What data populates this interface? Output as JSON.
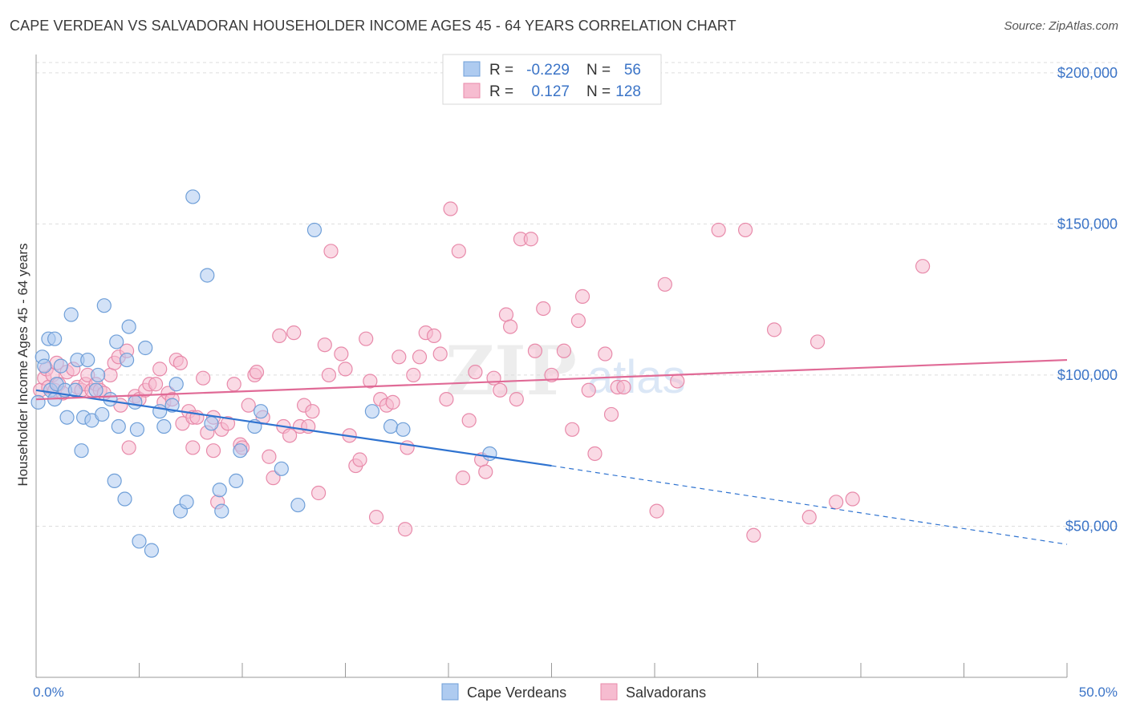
{
  "title": "CAPE VERDEAN VS SALVADORAN HOUSEHOLDER INCOME AGES 45 - 64 YEARS CORRELATION CHART",
  "source": "Source: ZipAtlas.com",
  "watermark": {
    "zip": "ZIP",
    "atlas": "atlas"
  },
  "legend": {
    "r_label": "R =",
    "n_label": "N =",
    "rows": [
      {
        "r": "-0.229",
        "n": "56"
      },
      {
        "r": "0.127",
        "n": "128"
      }
    ]
  },
  "bottom_legend": [
    "Cape Verdeans",
    "Salvadorans"
  ],
  "colors": {
    "blue_fill": "#aecbf0",
    "blue_stroke": "#6f9fd8",
    "blue_line": "#2f73d0",
    "pink_fill": "#f6bcd0",
    "pink_stroke": "#e88aaa",
    "pink_line": "#e06a96",
    "tick_text": "#3b74c7",
    "grid": "#dddddd"
  },
  "chart_data": {
    "type": "scatter",
    "title": "CAPE VERDEAN VS SALVADORAN HOUSEHOLDER INCOME AGES 45 - 64 YEARS CORRELATION CHART",
    "xlabel": "",
    "ylabel": "Householder Income Ages 45 - 64 years",
    "xlim": [
      0,
      50
    ],
    "ylim": [
      0,
      205000
    ],
    "x_tick_labels": [
      "0.0%",
      "50.0%"
    ],
    "y_ticks": [
      50000,
      100000,
      150000,
      200000
    ],
    "y_tick_labels": [
      "$50,000",
      "$100,000",
      "$150,000",
      "$200,000"
    ],
    "grid": true,
    "legend_position": "top-center",
    "series": [
      {
        "name": "Cape Verdeans",
        "r": -0.229,
        "n": 56,
        "trend": {
          "x0": 0,
          "y0": 95000,
          "x1": 25,
          "y1": 70000,
          "dashed_to_x": 50,
          "dashed_to_y": 44000
        },
        "points": [
          [
            0.1,
            91000
          ],
          [
            0.3,
            106000
          ],
          [
            0.4,
            103000
          ],
          [
            0.6,
            112000
          ],
          [
            0.9,
            112000
          ],
          [
            0.7,
            95000
          ],
          [
            0.9,
            92000
          ],
          [
            1.0,
            97000
          ],
          [
            1.2,
            103000
          ],
          [
            1.4,
            95000
          ],
          [
            1.5,
            86000
          ],
          [
            1.7,
            120000
          ],
          [
            1.9,
            95000
          ],
          [
            2.0,
            105000
          ],
          [
            2.2,
            75000
          ],
          [
            2.3,
            86000
          ],
          [
            2.5,
            105000
          ],
          [
            2.7,
            85000
          ],
          [
            2.9,
            95000
          ],
          [
            3.0,
            100000
          ],
          [
            3.2,
            87000
          ],
          [
            3.3,
            123000
          ],
          [
            3.6,
            92000
          ],
          [
            3.8,
            65000
          ],
          [
            3.9,
            111000
          ],
          [
            4.0,
            83000
          ],
          [
            4.3,
            59000
          ],
          [
            4.4,
            105000
          ],
          [
            4.5,
            116000
          ],
          [
            4.8,
            91000
          ],
          [
            4.9,
            82000
          ],
          [
            5.0,
            45000
          ],
          [
            5.3,
            109000
          ],
          [
            5.6,
            42000
          ],
          [
            6.0,
            88000
          ],
          [
            6.2,
            83000
          ],
          [
            6.6,
            90000
          ],
          [
            6.8,
            97000
          ],
          [
            7.0,
            55000
          ],
          [
            7.6,
            159000
          ],
          [
            7.3,
            58000
          ],
          [
            8.3,
            133000
          ],
          [
            8.5,
            84000
          ],
          [
            8.9,
            62000
          ],
          [
            9.0,
            55000
          ],
          [
            9.7,
            65000
          ],
          [
            9.9,
            75000
          ],
          [
            10.9,
            88000
          ],
          [
            10.6,
            83000
          ],
          [
            11.9,
            69000
          ],
          [
            12.7,
            57000
          ],
          [
            13.5,
            148000
          ],
          [
            16.3,
            88000
          ],
          [
            17.2,
            83000
          ],
          [
            17.8,
            82000
          ],
          [
            22.0,
            74000
          ]
        ]
      },
      {
        "name": "Salvadorans",
        "r": 0.127,
        "n": 128,
        "trend": {
          "x0": 0,
          "y0": 92000,
          "x1": 50,
          "y1": 105000
        },
        "points": [
          [
            0.2,
            95000
          ],
          [
            0.4,
            99000
          ],
          [
            0.5,
            102000
          ],
          [
            0.6,
            96000
          ],
          [
            0.8,
            100000
          ],
          [
            0.9,
            95000
          ],
          [
            1.0,
            104000
          ],
          [
            1.1,
            97000
          ],
          [
            1.3,
            94000
          ],
          [
            1.5,
            101000
          ],
          [
            1.8,
            102000
          ],
          [
            2.0,
            96000
          ],
          [
            2.2,
            95000
          ],
          [
            2.4,
            97000
          ],
          [
            2.5,
            100000
          ],
          [
            2.7,
            95000
          ],
          [
            2.9,
            97000
          ],
          [
            3.1,
            95000
          ],
          [
            3.3,
            94000
          ],
          [
            3.6,
            100000
          ],
          [
            3.8,
            104000
          ],
          [
            4.0,
            106000
          ],
          [
            4.1,
            90000
          ],
          [
            4.4,
            108000
          ],
          [
            4.5,
            76000
          ],
          [
            4.8,
            93000
          ],
          [
            5.0,
            92000
          ],
          [
            5.3,
            95000
          ],
          [
            5.5,
            97000
          ],
          [
            5.8,
            97000
          ],
          [
            6.0,
            102000
          ],
          [
            6.2,
            91000
          ],
          [
            6.4,
            94000
          ],
          [
            6.6,
            92000
          ],
          [
            6.8,
            105000
          ],
          [
            7.0,
            104000
          ],
          [
            7.1,
            84000
          ],
          [
            7.4,
            88000
          ],
          [
            7.6,
            86000
          ],
          [
            7.8,
            86000
          ],
          [
            7.6,
            76000
          ],
          [
            8.1,
            99000
          ],
          [
            8.3,
            81000
          ],
          [
            8.6,
            86000
          ],
          [
            8.8,
            58000
          ],
          [
            8.6,
            75000
          ],
          [
            9.0,
            82000
          ],
          [
            9.3,
            84000
          ],
          [
            9.6,
            97000
          ],
          [
            9.9,
            77000
          ],
          [
            10.0,
            76000
          ],
          [
            10.3,
            90000
          ],
          [
            10.6,
            100000
          ],
          [
            10.7,
            101000
          ],
          [
            11.0,
            86000
          ],
          [
            11.3,
            73000
          ],
          [
            11.5,
            66000
          ],
          [
            11.8,
            113000
          ],
          [
            12.0,
            83000
          ],
          [
            12.3,
            80000
          ],
          [
            12.5,
            114000
          ],
          [
            12.8,
            83000
          ],
          [
            13.0,
            90000
          ],
          [
            13.2,
            83000
          ],
          [
            13.4,
            88000
          ],
          [
            13.7,
            61000
          ],
          [
            14.0,
            110000
          ],
          [
            14.2,
            100000
          ],
          [
            14.3,
            141000
          ],
          [
            14.8,
            107000
          ],
          [
            15.0,
            102000
          ],
          [
            15.2,
            80000
          ],
          [
            15.5,
            70000
          ],
          [
            15.7,
            72000
          ],
          [
            16.0,
            112000
          ],
          [
            16.2,
            98000
          ],
          [
            16.5,
            53000
          ],
          [
            16.7,
            92000
          ],
          [
            17.0,
            90000
          ],
          [
            17.3,
            91000
          ],
          [
            17.6,
            106000
          ],
          [
            17.9,
            49000
          ],
          [
            18.0,
            76000
          ],
          [
            18.3,
            100000
          ],
          [
            18.6,
            106000
          ],
          [
            18.9,
            114000
          ],
          [
            19.3,
            113000
          ],
          [
            19.6,
            107000
          ],
          [
            19.9,
            92000
          ],
          [
            20.1,
            155000
          ],
          [
            20.5,
            141000
          ],
          [
            20.7,
            66000
          ],
          [
            21.0,
            85000
          ],
          [
            21.3,
            101000
          ],
          [
            21.6,
            72000
          ],
          [
            21.8,
            68000
          ],
          [
            22.2,
            99000
          ],
          [
            22.5,
            95000
          ],
          [
            22.8,
            120000
          ],
          [
            23.0,
            116000
          ],
          [
            23.3,
            92000
          ],
          [
            23.5,
            145000
          ],
          [
            24.0,
            145000
          ],
          [
            24.2,
            108000
          ],
          [
            24.6,
            122000
          ],
          [
            25.0,
            100000
          ],
          [
            25.6,
            108000
          ],
          [
            26.0,
            82000
          ],
          [
            26.3,
            118000
          ],
          [
            26.5,
            126000
          ],
          [
            26.8,
            95000
          ],
          [
            27.1,
            74000
          ],
          [
            27.6,
            107000
          ],
          [
            27.9,
            87000
          ],
          [
            28.2,
            96000
          ],
          [
            28.5,
            96000
          ],
          [
            30.1,
            55000
          ],
          [
            30.5,
            130000
          ],
          [
            31.1,
            98000
          ],
          [
            33.1,
            148000
          ],
          [
            34.4,
            148000
          ],
          [
            34.8,
            47000
          ],
          [
            35.8,
            115000
          ],
          [
            37.5,
            53000
          ],
          [
            37.9,
            111000
          ],
          [
            38.8,
            58000
          ],
          [
            39.6,
            59000
          ],
          [
            43.0,
            136000
          ]
        ]
      }
    ]
  }
}
